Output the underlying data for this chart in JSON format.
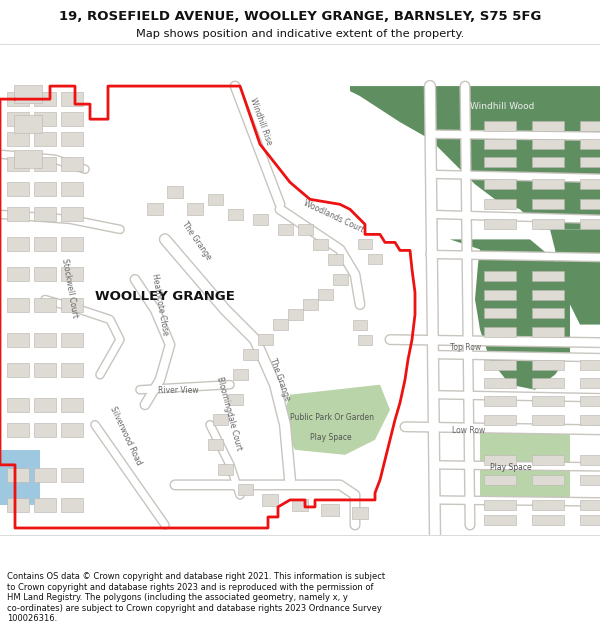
{
  "title_line1": "19, ROSEFIELD AVENUE, WOOLLEY GRANGE, BARNSLEY, S75 5FG",
  "title_line2": "Map shows position and indicative extent of the property.",
  "footer": "Contains OS data © Crown copyright and database right 2021. This information is subject\nto Crown copyright and database rights 2023 and is reproduced with the permission of\nHM Land Registry. The polygons (including the associated geometry, namely x, y\nco-ordinates) are subject to Crown copyright and database rights 2023 Ordnance Survey\n100026316.",
  "map_bg": "#f0ede8",
  "road_color": "#ffffff",
  "building_color": "#dedad4",
  "green_dark": "#5f8f60",
  "green_light": "#b8d4a8",
  "water_color": "#9ec8e0",
  "red_color": "#ee1111",
  "header_bg": "#ffffff",
  "gray_border": "#999999"
}
